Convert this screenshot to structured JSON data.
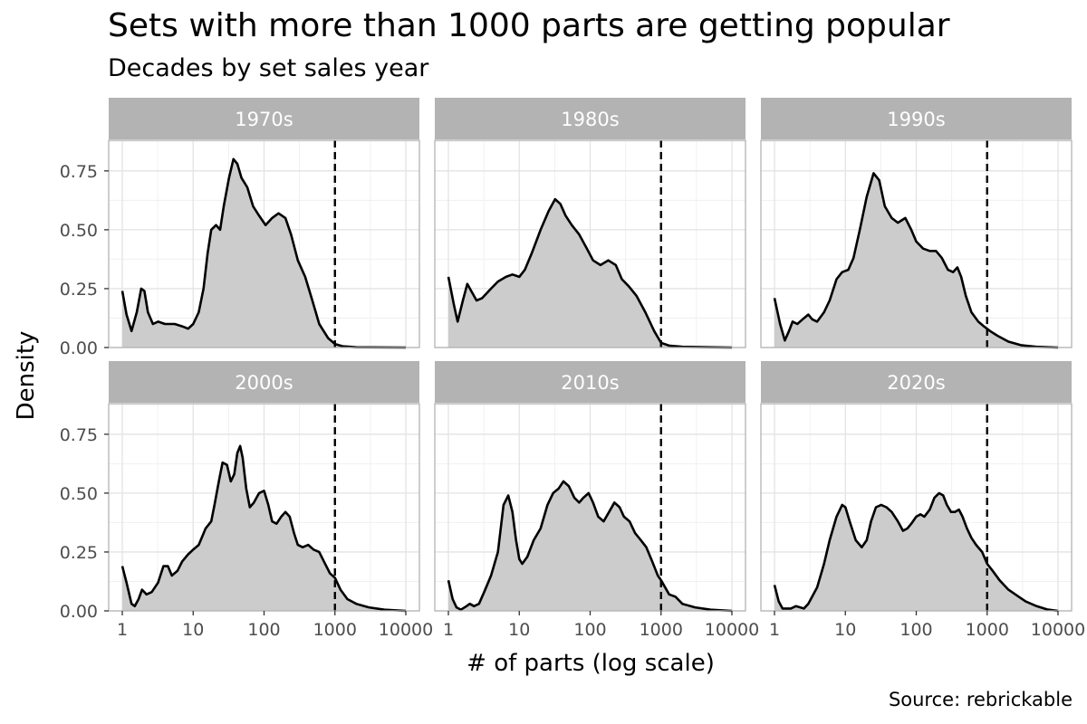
{
  "chart_data": {
    "type": "area",
    "title": "Sets with more than 1000 parts are getting popular",
    "subtitle": "Decades by set sales year",
    "xlabel": "# of parts (log scale)",
    "ylabel": "Density",
    "caption": "Source: rebrickable",
    "x_scale": "log10",
    "xlim": [
      1,
      10000
    ],
    "ylim": [
      0,
      0.88
    ],
    "x_ticks": [
      1,
      10,
      100,
      1000,
      10000
    ],
    "x_tick_labels": [
      "1",
      "10",
      "100",
      "1000",
      "10000"
    ],
    "y_ticks": [
      0,
      0.25,
      0.5,
      0.75
    ],
    "y_tick_labels": [
      "0.00",
      "0.25",
      "0.50",
      "0.75"
    ],
    "reference_line": {
      "x": 1000,
      "style": "dashed"
    },
    "grid": true,
    "fill_color": "#cccccc",
    "line_color": "#000000",
    "strip_color": "#b3b3b3",
    "panels": [
      {
        "label": "1970s",
        "points": [
          [
            1,
            0.24
          ],
          [
            1.15,
            0.14
          ],
          [
            1.35,
            0.07
          ],
          [
            1.6,
            0.15
          ],
          [
            1.85,
            0.25
          ],
          [
            2.05,
            0.24
          ],
          [
            2.3,
            0.15
          ],
          [
            2.7,
            0.1
          ],
          [
            3.2,
            0.11
          ],
          [
            4,
            0.1
          ],
          [
            5.5,
            0.1
          ],
          [
            7,
            0.09
          ],
          [
            8.5,
            0.08
          ],
          [
            10,
            0.1
          ],
          [
            12,
            0.15
          ],
          [
            14,
            0.25
          ],
          [
            16,
            0.4
          ],
          [
            18,
            0.5
          ],
          [
            21,
            0.52
          ],
          [
            24,
            0.5
          ],
          [
            27,
            0.6
          ],
          [
            32,
            0.72
          ],
          [
            37,
            0.8
          ],
          [
            42,
            0.78
          ],
          [
            48,
            0.72
          ],
          [
            58,
            0.68
          ],
          [
            70,
            0.6
          ],
          [
            85,
            0.56
          ],
          [
            105,
            0.52
          ],
          [
            130,
            0.55
          ],
          [
            160,
            0.57
          ],
          [
            200,
            0.55
          ],
          [
            240,
            0.48
          ],
          [
            300,
            0.37
          ],
          [
            380,
            0.3
          ],
          [
            480,
            0.2
          ],
          [
            600,
            0.1
          ],
          [
            800,
            0.04
          ],
          [
            1000,
            0.015
          ],
          [
            1300,
            0.005
          ],
          [
            2000,
            0.001
          ],
          [
            10000,
            0
          ]
        ]
      },
      {
        "label": "1980s",
        "points": [
          [
            1,
            0.3
          ],
          [
            1.2,
            0.18
          ],
          [
            1.35,
            0.11
          ],
          [
            1.6,
            0.2
          ],
          [
            1.85,
            0.27
          ],
          [
            2.1,
            0.24
          ],
          [
            2.5,
            0.2
          ],
          [
            3,
            0.21
          ],
          [
            4,
            0.25
          ],
          [
            5,
            0.28
          ],
          [
            6.5,
            0.3
          ],
          [
            8,
            0.31
          ],
          [
            10,
            0.3
          ],
          [
            12,
            0.33
          ],
          [
            15,
            0.4
          ],
          [
            20,
            0.5
          ],
          [
            26,
            0.58
          ],
          [
            32,
            0.63
          ],
          [
            38,
            0.61
          ],
          [
            45,
            0.56
          ],
          [
            55,
            0.52
          ],
          [
            70,
            0.48
          ],
          [
            90,
            0.42
          ],
          [
            110,
            0.37
          ],
          [
            140,
            0.35
          ],
          [
            180,
            0.37
          ],
          [
            230,
            0.35
          ],
          [
            280,
            0.29
          ],
          [
            350,
            0.26
          ],
          [
            450,
            0.22
          ],
          [
            600,
            0.15
          ],
          [
            800,
            0.07
          ],
          [
            1000,
            0.02
          ],
          [
            1300,
            0.008
          ],
          [
            2000,
            0.003
          ],
          [
            5000,
            0.001
          ],
          [
            10000,
            0
          ]
        ]
      },
      {
        "label": "1990s",
        "points": [
          [
            1,
            0.21
          ],
          [
            1.2,
            0.1
          ],
          [
            1.4,
            0.03
          ],
          [
            1.6,
            0.07
          ],
          [
            1.8,
            0.11
          ],
          [
            2.1,
            0.1
          ],
          [
            2.5,
            0.12
          ],
          [
            3,
            0.14
          ],
          [
            3.4,
            0.12
          ],
          [
            4,
            0.11
          ],
          [
            5,
            0.15
          ],
          [
            6,
            0.2
          ],
          [
            7.5,
            0.29
          ],
          [
            9,
            0.32
          ],
          [
            11,
            0.33
          ],
          [
            13,
            0.38
          ],
          [
            16,
            0.5
          ],
          [
            20,
            0.64
          ],
          [
            25,
            0.74
          ],
          [
            30,
            0.71
          ],
          [
            36,
            0.6
          ],
          [
            45,
            0.55
          ],
          [
            55,
            0.53
          ],
          [
            70,
            0.55
          ],
          [
            85,
            0.5
          ],
          [
            100,
            0.45
          ],
          [
            125,
            0.42
          ],
          [
            155,
            0.41
          ],
          [
            190,
            0.41
          ],
          [
            230,
            0.38
          ],
          [
            280,
            0.33
          ],
          [
            330,
            0.32
          ],
          [
            380,
            0.34
          ],
          [
            430,
            0.3
          ],
          [
            500,
            0.22
          ],
          [
            600,
            0.15
          ],
          [
            750,
            0.11
          ],
          [
            900,
            0.09
          ],
          [
            1100,
            0.07
          ],
          [
            1400,
            0.05
          ],
          [
            2000,
            0.025
          ],
          [
            3000,
            0.01
          ],
          [
            5000,
            0.003
          ],
          [
            10000,
            0
          ]
        ]
      },
      {
        "label": "2000s",
        "points": [
          [
            1,
            0.19
          ],
          [
            1.15,
            0.12
          ],
          [
            1.35,
            0.03
          ],
          [
            1.5,
            0.02
          ],
          [
            1.7,
            0.05
          ],
          [
            1.9,
            0.09
          ],
          [
            2.2,
            0.07
          ],
          [
            2.6,
            0.08
          ],
          [
            3.2,
            0.12
          ],
          [
            3.8,
            0.19
          ],
          [
            4.4,
            0.19
          ],
          [
            5,
            0.15
          ],
          [
            6,
            0.17
          ],
          [
            7,
            0.21
          ],
          [
            8.5,
            0.24
          ],
          [
            10,
            0.26
          ],
          [
            12,
            0.28
          ],
          [
            15,
            0.35
          ],
          [
            18,
            0.38
          ],
          [
            20,
            0.45
          ],
          [
            23,
            0.55
          ],
          [
            26,
            0.63
          ],
          [
            30,
            0.62
          ],
          [
            34,
            0.55
          ],
          [
            38,
            0.58
          ],
          [
            42,
            0.67
          ],
          [
            46,
            0.7
          ],
          [
            50,
            0.65
          ],
          [
            56,
            0.52
          ],
          [
            63,
            0.44
          ],
          [
            72,
            0.46
          ],
          [
            85,
            0.5
          ],
          [
            100,
            0.51
          ],
          [
            115,
            0.45
          ],
          [
            130,
            0.38
          ],
          [
            150,
            0.37
          ],
          [
            175,
            0.4
          ],
          [
            200,
            0.42
          ],
          [
            230,
            0.4
          ],
          [
            265,
            0.33
          ],
          [
            300,
            0.28
          ],
          [
            350,
            0.27
          ],
          [
            420,
            0.28
          ],
          [
            500,
            0.26
          ],
          [
            600,
            0.25
          ],
          [
            700,
            0.21
          ],
          [
            850,
            0.16
          ],
          [
            1000,
            0.14
          ],
          [
            1200,
            0.09
          ],
          [
            1500,
            0.05
          ],
          [
            2000,
            0.03
          ],
          [
            3000,
            0.015
          ],
          [
            5000,
            0.005
          ],
          [
            10000,
            0
          ]
        ]
      },
      {
        "label": "2010s",
        "points": [
          [
            1,
            0.13
          ],
          [
            1.15,
            0.05
          ],
          [
            1.3,
            0.015
          ],
          [
            1.5,
            0.005
          ],
          [
            1.8,
            0.02
          ],
          [
            2,
            0.03
          ],
          [
            2.3,
            0.02
          ],
          [
            2.7,
            0.03
          ],
          [
            3.2,
            0.08
          ],
          [
            4,
            0.15
          ],
          [
            5,
            0.25
          ],
          [
            6,
            0.45
          ],
          [
            7,
            0.49
          ],
          [
            8,
            0.42
          ],
          [
            9,
            0.3
          ],
          [
            10,
            0.22
          ],
          [
            11,
            0.2
          ],
          [
            13,
            0.23
          ],
          [
            16,
            0.3
          ],
          [
            20,
            0.35
          ],
          [
            25,
            0.45
          ],
          [
            30,
            0.5
          ],
          [
            36,
            0.52
          ],
          [
            42,
            0.55
          ],
          [
            50,
            0.53
          ],
          [
            60,
            0.48
          ],
          [
            70,
            0.46
          ],
          [
            80,
            0.48
          ],
          [
            95,
            0.5
          ],
          [
            110,
            0.46
          ],
          [
            130,
            0.4
          ],
          [
            155,
            0.38
          ],
          [
            185,
            0.42
          ],
          [
            220,
            0.46
          ],
          [
            260,
            0.44
          ],
          [
            300,
            0.4
          ],
          [
            360,
            0.38
          ],
          [
            430,
            0.33
          ],
          [
            520,
            0.3
          ],
          [
            620,
            0.27
          ],
          [
            750,
            0.21
          ],
          [
            900,
            0.15
          ],
          [
            1000,
            0.13
          ],
          [
            1300,
            0.07
          ],
          [
            1600,
            0.06
          ],
          [
            2000,
            0.03
          ],
          [
            3000,
            0.015
          ],
          [
            5000,
            0.005
          ],
          [
            10000,
            0
          ]
        ]
      },
      {
        "label": "2020s",
        "points": [
          [
            1,
            0.11
          ],
          [
            1.15,
            0.04
          ],
          [
            1.3,
            0.01
          ],
          [
            1.7,
            0.01
          ],
          [
            2,
            0.02
          ],
          [
            2.6,
            0.01
          ],
          [
            3,
            0.03
          ],
          [
            4,
            0.1
          ],
          [
            5,
            0.2
          ],
          [
            6,
            0.3
          ],
          [
            7.5,
            0.4
          ],
          [
            9,
            0.45
          ],
          [
            10,
            0.44
          ],
          [
            11.5,
            0.38
          ],
          [
            14,
            0.3
          ],
          [
            17,
            0.27
          ],
          [
            20,
            0.3
          ],
          [
            23,
            0.38
          ],
          [
            27,
            0.44
          ],
          [
            32,
            0.45
          ],
          [
            38,
            0.44
          ],
          [
            45,
            0.42
          ],
          [
            55,
            0.38
          ],
          [
            65,
            0.34
          ],
          [
            75,
            0.35
          ],
          [
            85,
            0.37
          ],
          [
            100,
            0.4
          ],
          [
            115,
            0.41
          ],
          [
            130,
            0.4
          ],
          [
            155,
            0.43
          ],
          [
            180,
            0.48
          ],
          [
            210,
            0.5
          ],
          [
            240,
            0.49
          ],
          [
            270,
            0.45
          ],
          [
            310,
            0.42
          ],
          [
            350,
            0.42
          ],
          [
            400,
            0.43
          ],
          [
            450,
            0.4
          ],
          [
            520,
            0.35
          ],
          [
            600,
            0.31
          ],
          [
            700,
            0.28
          ],
          [
            850,
            0.25
          ],
          [
            1000,
            0.2
          ],
          [
            1200,
            0.17
          ],
          [
            1500,
            0.13
          ],
          [
            2000,
            0.09
          ],
          [
            2800,
            0.06
          ],
          [
            3500,
            0.04
          ],
          [
            5000,
            0.02
          ],
          [
            7000,
            0.006
          ],
          [
            10000,
            0
          ]
        ]
      }
    ]
  }
}
